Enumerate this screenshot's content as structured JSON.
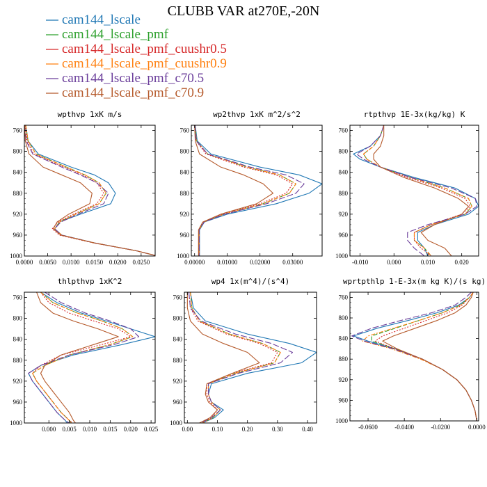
{
  "figure": {
    "title": "CLUBB VAR at270E,-20N"
  },
  "legend": [
    {
      "name": "cam144_lscale",
      "color": "#1f77b4",
      "dash": "solid"
    },
    {
      "name": "cam144_lscale_pmf",
      "color": "#2ca02c",
      "dash": "dash"
    },
    {
      "name": "cam144_lscale_pmf_cuushr0.5",
      "color": "#d62728",
      "dash": "dot"
    },
    {
      "name": "cam144_lscale_pmf_cuushr0.9",
      "color": "#ff7f0e",
      "dash": "dashdot"
    },
    {
      "name": "cam144_lscale_pmf_c70.5",
      "color": "#6a3d9a",
      "dash": "longdash"
    },
    {
      "name": "cam144_lscale_pmf_c70.9",
      "color": "#b5592a",
      "dash": "solid"
    }
  ],
  "chart_data": [
    {
      "type": "line",
      "title": "wpthvp  1xK m/s",
      "xlim": [
        0,
        0.028
      ],
      "ylim": [
        750,
        1000
      ],
      "y_inverted": true,
      "yticks": [
        760,
        800,
        840,
        880,
        920,
        960,
        1000
      ],
      "xticks": [
        0,
        0.005,
        0.01,
        0.015,
        0.02,
        0.025
      ],
      "xtick_labels": [
        "0.0000",
        "0.0050",
        "0.0100",
        "0.0150",
        "0.0200",
        "0.0250"
      ],
      "y": [
        750,
        780,
        805,
        830,
        845,
        860,
        880,
        900,
        920,
        935,
        948,
        960,
        975,
        990,
        1000
      ],
      "series": [
        {
          "name": "cam144_lscale",
          "x": [
            0.0003,
            0.0008,
            0.003,
            0.01,
            0.015,
            0.018,
            0.0195,
            0.0185,
            0.012,
            0.0075,
            0.0065,
            0.008,
            0.015,
            0.024,
            0.0285
          ]
        },
        {
          "name": "cam144_lscale_pmf",
          "x": [
            0.0003,
            0.0008,
            0.0025,
            0.009,
            0.013,
            0.016,
            0.0175,
            0.016,
            0.011,
            0.0075,
            0.0065,
            0.008,
            0.015,
            0.024,
            0.0285
          ]
        },
        {
          "name": "cam144_lscale_pmf_cuushr0.5",
          "x": [
            0.0002,
            0.0006,
            0.002,
            0.0085,
            0.0125,
            0.0155,
            0.017,
            0.0155,
            0.0105,
            0.0072,
            0.006,
            0.0075,
            0.0148,
            0.024,
            0.0285
          ]
        },
        {
          "name": "cam144_lscale_pmf_cuushr0.9",
          "x": [
            0.0003,
            0.0008,
            0.0025,
            0.009,
            0.013,
            0.016,
            0.0175,
            0.016,
            0.011,
            0.0075,
            0.0065,
            0.008,
            0.015,
            0.024,
            0.0285
          ]
        },
        {
          "name": "cam144_lscale_pmf_c70.5",
          "x": [
            0.0001,
            0.0004,
            0.0018,
            0.008,
            0.012,
            0.0155,
            0.018,
            0.017,
            0.0115,
            0.0078,
            0.0065,
            0.008,
            0.015,
            0.024,
            0.0285
          ]
        },
        {
          "name": "cam144_lscale_pmf_c70.9",
          "x": [
            0.0001,
            0.0002,
            0.001,
            0.004,
            0.008,
            0.012,
            0.0145,
            0.014,
            0.0095,
            0.007,
            0.0062,
            0.0078,
            0.015,
            0.024,
            0.0285
          ]
        }
      ]
    },
    {
      "type": "line",
      "title": "wp2thvp  1xK m^2/s^2",
      "xlim": [
        -0.001,
        0.039
      ],
      "ylim": [
        750,
        1000
      ],
      "y_inverted": true,
      "yticks": [
        760,
        800,
        840,
        880,
        920,
        960,
        1000
      ],
      "xticks": [
        0,
        0.01,
        0.02,
        0.03
      ],
      "xtick_labels": [
        "0.00000",
        "0.01000",
        "0.02000",
        "0.03000"
      ],
      "y": [
        750,
        780,
        805,
        830,
        845,
        862,
        880,
        900,
        920,
        935,
        950,
        965,
        980,
        1000
      ],
      "series": [
        {
          "name": "cam144_lscale",
          "x": [
            0.0002,
            0.0008,
            0.005,
            0.02,
            0.032,
            0.039,
            0.035,
            0.025,
            0.01,
            0.003,
            0.0015,
            0.0015,
            0.0015,
            0.0015
          ]
        },
        {
          "name": "cam144_lscale_pmf",
          "x": [
            0.0001,
            0.0006,
            0.004,
            0.016,
            0.026,
            0.031,
            0.029,
            0.021,
            0.009,
            0.0028,
            0.0014,
            0.0014,
            0.0014,
            0.0014
          ]
        },
        {
          "name": "cam144_lscale_pmf_cuushr0.5",
          "x": [
            0.0001,
            0.0005,
            0.0035,
            0.015,
            0.025,
            0.03,
            0.028,
            0.02,
            0.0085,
            0.0027,
            0.0013,
            0.0013,
            0.0013,
            0.0013
          ]
        },
        {
          "name": "cam144_lscale_pmf_cuushr0.9",
          "x": [
            0.0001,
            0.0006,
            0.004,
            0.016,
            0.026,
            0.031,
            0.029,
            0.021,
            0.009,
            0.0028,
            0.0014,
            0.0014,
            0.0014,
            0.0014
          ]
        },
        {
          "name": "cam144_lscale_pmf_c70.5",
          "x": [
            0.0001,
            0.0005,
            0.004,
            0.017,
            0.028,
            0.0335,
            0.031,
            0.022,
            0.0092,
            0.0029,
            0.0014,
            0.0014,
            0.0014,
            0.0014
          ]
        },
        {
          "name": "cam144_lscale_pmf_c70.9",
          "x": [
            0.0,
            0.0002,
            0.0015,
            0.008,
            0.015,
            0.021,
            0.024,
            0.019,
            0.008,
            0.0025,
            0.0012,
            0.0012,
            0.0012,
            0.0012
          ]
        }
      ]
    },
    {
      "type": "line",
      "title": "rtpthvp  1E-3x(kg/kg) K",
      "xlim": [
        -0.013,
        0.025
      ],
      "ylim": [
        750,
        1000
      ],
      "y_inverted": true,
      "yticks": [
        760,
        800,
        840,
        880,
        920,
        960,
        1000
      ],
      "xticks": [
        -0.01,
        0,
        0.01,
        0.02
      ],
      "xtick_labels": [
        "-0.010",
        "0.000",
        "0.010",
        "0.020"
      ],
      "y": [
        750,
        770,
        790,
        805,
        815,
        830,
        850,
        870,
        890,
        905,
        920,
        940,
        955,
        970,
        985,
        1000
      ],
      "series": [
        {
          "name": "cam144_lscale",
          "x": [
            -0.003,
            -0.004,
            -0.007,
            -0.012,
            -0.01,
            -0.004,
            0.006,
            0.018,
            0.024,
            0.025,
            0.022,
            0.012,
            0.007,
            0.007,
            0.009,
            0.01
          ]
        },
        {
          "name": "cam144_lscale_pmf",
          "x": [
            -0.003,
            -0.004,
            -0.006,
            -0.009,
            -0.008,
            -0.004,
            0.005,
            0.015,
            0.022,
            0.023,
            0.021,
            0.011,
            0.006,
            0.006,
            0.009,
            0.011
          ]
        },
        {
          "name": "cam144_lscale_pmf_cuushr0.5",
          "x": [
            -0.003,
            -0.004,
            -0.006,
            -0.009,
            -0.008,
            -0.004,
            0.004,
            0.014,
            0.021,
            0.0225,
            0.02,
            0.011,
            0.006,
            0.006,
            0.008,
            0.011
          ]
        },
        {
          "name": "cam144_lscale_pmf_cuushr0.9",
          "x": [
            -0.003,
            -0.004,
            -0.006,
            -0.009,
            -0.008,
            -0.004,
            0.005,
            0.015,
            0.022,
            0.023,
            0.021,
            0.011,
            0.006,
            0.006,
            0.009,
            0.011
          ]
        },
        {
          "name": "cam144_lscale_pmf_c70.5",
          "x": [
            -0.003,
            -0.004,
            -0.007,
            -0.011,
            -0.009,
            -0.004,
            0.005,
            0.017,
            0.024,
            0.0245,
            0.021,
            0.01,
            0.004,
            0.004,
            0.006,
            0.009
          ]
        },
        {
          "name": "cam144_lscale_pmf_c70.9",
          "x": [
            -0.003,
            -0.003,
            -0.004,
            -0.006,
            -0.006,
            -0.004,
            0.003,
            0.012,
            0.019,
            0.022,
            0.02,
            0.012,
            0.008,
            0.01,
            0.015,
            0.017
          ]
        }
      ]
    },
    {
      "type": "line",
      "title": "thlpthvp  1xK^2",
      "xlim": [
        -0.006,
        0.026
      ],
      "ylim": [
        750,
        1000
      ],
      "y_inverted": true,
      "yticks": [
        760,
        800,
        840,
        880,
        920,
        960,
        1000
      ],
      "xticks": [
        0,
        0.005,
        0.01,
        0.015,
        0.02,
        0.025
      ],
      "xtick_labels": [
        "0.000",
        "0.005",
        "0.010",
        "0.015",
        "0.020",
        "0.025"
      ],
      "y": [
        750,
        770,
        790,
        805,
        820,
        835,
        850,
        870,
        890,
        905,
        920,
        940,
        960,
        980,
        995,
        1000
      ],
      "series": [
        {
          "name": "cam144_lscale",
          "x": [
            -0.002,
            0.002,
            0.008,
            0.014,
            0.02,
            0.026,
            0.018,
            0.006,
            -0.002,
            -0.005,
            -0.004,
            -0.002,
            0.0,
            0.002,
            0.004,
            0.0045
          ]
        },
        {
          "name": "cam144_lscale_pmf",
          "x": [
            -0.002,
            0.001,
            0.007,
            0.013,
            0.018,
            0.0205,
            0.015,
            0.005,
            -0.001,
            -0.004,
            -0.003,
            -0.001,
            0.001,
            0.003,
            0.005,
            0.0055
          ]
        },
        {
          "name": "cam144_lscale_pmf_cuushr0.5",
          "x": [
            -0.002,
            0.0,
            0.005,
            0.011,
            0.017,
            0.02,
            0.013,
            0.003,
            -0.002,
            -0.004,
            -0.003,
            -0.001,
            0.001,
            0.003,
            0.005,
            0.0058
          ]
        },
        {
          "name": "cam144_lscale_pmf_cuushr0.9",
          "x": [
            -0.002,
            0.001,
            0.007,
            0.013,
            0.018,
            0.0205,
            0.015,
            0.005,
            -0.001,
            -0.004,
            -0.003,
            -0.001,
            0.001,
            0.003,
            0.005,
            0.0055
          ]
        },
        {
          "name": "cam144_lscale_pmf_c70.5",
          "x": [
            -0.001,
            0.003,
            0.009,
            0.015,
            0.02,
            0.022,
            0.016,
            0.005,
            -0.002,
            -0.005,
            -0.004,
            -0.002,
            0.0,
            0.002,
            0.004,
            0.005
          ]
        },
        {
          "name": "cam144_lscale_pmf_c70.9",
          "x": [
            -0.003,
            -0.002,
            0.001,
            0.006,
            0.012,
            0.017,
            0.011,
            0.003,
            -0.001,
            -0.002,
            -0.001,
            0.001,
            0.003,
            0.005,
            0.006,
            0.0065
          ]
        }
      ]
    },
    {
      "type": "line",
      "title": "wp4  1x(m^4)/(s^4)",
      "xlim": [
        -0.01,
        0.43
      ],
      "ylim": [
        750,
        1000
      ],
      "y_inverted": true,
      "yticks": [
        760,
        800,
        840,
        880,
        920,
        960,
        1000
      ],
      "xticks": [
        0,
        0.1,
        0.2,
        0.3,
        0.4
      ],
      "xtick_labels": [
        "0.00",
        "0.10",
        "0.20",
        "0.30",
        "0.40"
      ],
      "y": [
        750,
        780,
        805,
        830,
        848,
        865,
        885,
        905,
        925,
        945,
        960,
        975,
        990,
        1000
      ],
      "series": [
        {
          "name": "cam144_lscale",
          "x": [
            0.01,
            0.02,
            0.06,
            0.2,
            0.34,
            0.43,
            0.38,
            0.2,
            0.08,
            0.07,
            0.08,
            0.12,
            0.09,
            0.05
          ]
        },
        {
          "name": "cam144_lscale_pmf",
          "x": [
            0.01,
            0.015,
            0.04,
            0.14,
            0.25,
            0.31,
            0.29,
            0.16,
            0.07,
            0.07,
            0.08,
            0.11,
            0.085,
            0.05
          ]
        },
        {
          "name": "cam144_lscale_pmf_cuushr0.5",
          "x": [
            0.005,
            0.01,
            0.035,
            0.13,
            0.24,
            0.3,
            0.28,
            0.15,
            0.065,
            0.065,
            0.075,
            0.1,
            0.08,
            0.045
          ]
        },
        {
          "name": "cam144_lscale_pmf_cuushr0.9",
          "x": [
            0.01,
            0.015,
            0.04,
            0.14,
            0.25,
            0.31,
            0.29,
            0.16,
            0.07,
            0.07,
            0.08,
            0.11,
            0.085,
            0.05
          ]
        },
        {
          "name": "cam144_lscale_pmf_c70.5",
          "x": [
            0.005,
            0.01,
            0.045,
            0.16,
            0.28,
            0.35,
            0.31,
            0.17,
            0.07,
            0.07,
            0.08,
            0.11,
            0.08,
            0.045
          ]
        },
        {
          "name": "cam144_lscale_pmf_c70.9",
          "x": [
            0.0,
            0.0,
            0.01,
            0.05,
            0.12,
            0.2,
            0.24,
            0.15,
            0.065,
            0.06,
            0.07,
            0.1,
            0.075,
            0.04
          ]
        }
      ]
    },
    {
      "type": "line",
      "title": "wprtpthlp  1-E-3x(m kg K)/(s kg)",
      "xlim": [
        -0.07,
        0.001
      ],
      "ylim": [
        750,
        1000
      ],
      "y_inverted": true,
      "yticks": [
        760,
        800,
        840,
        880,
        920,
        960,
        1000
      ],
      "xticks": [
        -0.06,
        -0.04,
        -0.02,
        0
      ],
      "xtick_labels": [
        "-0.0600",
        "-0.0400",
        "-0.0200",
        "0.0000"
      ],
      "y": [
        750,
        760,
        775,
        790,
        805,
        820,
        835,
        845,
        860,
        880,
        900,
        920,
        940,
        960,
        980,
        1000
      ],
      "series": [
        {
          "name": "cam144_lscale",
          "x": [
            -0.002,
            -0.004,
            -0.01,
            -0.022,
            -0.038,
            -0.055,
            -0.068,
            -0.06,
            -0.045,
            -0.03,
            -0.019,
            -0.011,
            -0.006,
            -0.003,
            -0.001,
            0.0
          ]
        },
        {
          "name": "cam144_lscale_pmf",
          "x": [
            -0.002,
            -0.004,
            -0.009,
            -0.019,
            -0.032,
            -0.045,
            -0.058,
            -0.058,
            -0.045,
            -0.03,
            -0.019,
            -0.011,
            -0.006,
            -0.003,
            -0.001,
            0.0
          ]
        },
        {
          "name": "cam144_lscale_pmf_cuushr0.5",
          "x": [
            -0.002,
            -0.004,
            -0.008,
            -0.016,
            -0.028,
            -0.04,
            -0.052,
            -0.056,
            -0.045,
            -0.03,
            -0.019,
            -0.011,
            -0.006,
            -0.003,
            -0.001,
            0.0
          ]
        },
        {
          "name": "cam144_lscale_pmf_cuushr0.9",
          "x": [
            -0.002,
            -0.004,
            -0.009,
            -0.019,
            -0.032,
            -0.046,
            -0.06,
            -0.063,
            -0.047,
            -0.031,
            -0.019,
            -0.011,
            -0.006,
            -0.003,
            -0.001,
            0.0
          ]
        },
        {
          "name": "cam144_lscale_pmf_c70.5",
          "x": [
            -0.003,
            -0.006,
            -0.012,
            -0.025,
            -0.042,
            -0.058,
            -0.069,
            -0.062,
            -0.046,
            -0.03,
            -0.019,
            -0.011,
            -0.006,
            -0.003,
            -0.001,
            0.0
          ]
        },
        {
          "name": "cam144_lscale_pmf_c70.9",
          "x": [
            -0.002,
            -0.003,
            -0.006,
            -0.012,
            -0.022,
            -0.034,
            -0.046,
            -0.052,
            -0.044,
            -0.03,
            -0.019,
            -0.011,
            -0.006,
            -0.003,
            -0.001,
            0.0
          ]
        }
      ]
    }
  ]
}
